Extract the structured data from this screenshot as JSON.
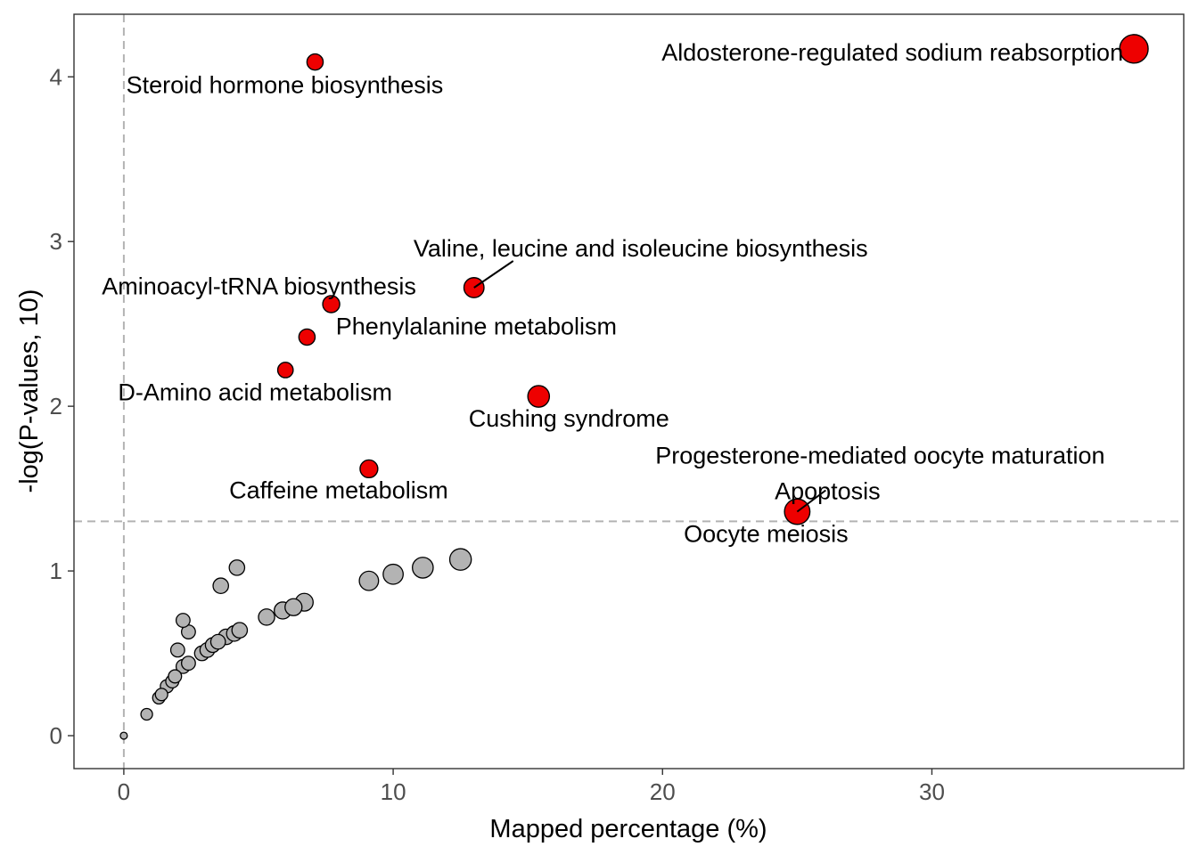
{
  "chart_data": {
    "type": "scatter",
    "title": "",
    "xlabel": "Mapped percentage (%)",
    "ylabel": "-log(P-values, 10)",
    "xlim": [
      -1.85,
      39.35
    ],
    "ylim": [
      -0.2,
      4.38
    ],
    "x_ticks": [
      0,
      10,
      20,
      30
    ],
    "y_ticks": [
      0,
      1,
      2,
      3,
      4
    ],
    "x_tick_labels": [
      "0",
      "10",
      "20",
      "30"
    ],
    "y_tick_labels": [
      "0",
      "1",
      "2",
      "3",
      "4"
    ],
    "reference_lines": {
      "vline_x": 0,
      "hline_y": 1.301
    },
    "grid": false,
    "legend": "none",
    "colors": {
      "significant": "#ee0000",
      "nonsignificant": "#b3b3b3",
      "outline": "#000000",
      "reference": "#b3b3b3"
    },
    "significant_points": [
      {
        "name": "Aldosterone-regulated sodium reabsorption",
        "x": 37.5,
        "y": 4.17,
        "size": 3.2
      },
      {
        "name": "Steroid hormone biosynthesis",
        "x": 7.1,
        "y": 4.09,
        "size": 1.6
      },
      {
        "name": "Valine, leucine and isoleucine biosynthesis",
        "x": 13.0,
        "y": 2.72,
        "size": 2.1
      },
      {
        "name": "Aminoacyl-tRNA biosynthesis",
        "x": 7.7,
        "y": 2.62,
        "size": 1.7
      },
      {
        "name": "Phenylalanine metabolism",
        "x": 6.8,
        "y": 2.42,
        "size": 1.6
      },
      {
        "name": "D-Amino acid metabolism",
        "x": 6.0,
        "y": 2.22,
        "size": 1.5
      },
      {
        "name": "Cushing syndrome",
        "x": 15.4,
        "y": 2.06,
        "size": 2.3
      },
      {
        "name": "Caffeine metabolism",
        "x": 9.1,
        "y": 1.62,
        "size": 1.8
      },
      {
        "name": "Progesterone-mediated oocyte maturation",
        "x": 25.0,
        "y": 1.36,
        "size": 2.8
      },
      {
        "name": "Apoptosis",
        "x": 25.0,
        "y": 1.36,
        "size": 2.8
      },
      {
        "name": "Oocyte meiosis",
        "x": 25.0,
        "y": 1.36,
        "size": 2.8
      }
    ],
    "nonsignificant_points": [
      {
        "x": 0.0,
        "y": 0.0,
        "size": 0.4
      },
      {
        "x": 0.85,
        "y": 0.13,
        "size": 1.0
      },
      {
        "x": 1.3,
        "y": 0.23,
        "size": 1.1
      },
      {
        "x": 1.4,
        "y": 0.25,
        "size": 1.1
      },
      {
        "x": 1.6,
        "y": 0.3,
        "size": 1.2
      },
      {
        "x": 1.8,
        "y": 0.33,
        "size": 1.2
      },
      {
        "x": 1.9,
        "y": 0.36,
        "size": 1.2
      },
      {
        "x": 2.2,
        "y": 0.42,
        "size": 1.3
      },
      {
        "x": 2.4,
        "y": 0.44,
        "size": 1.3
      },
      {
        "x": 2.0,
        "y": 0.52,
        "size": 1.3
      },
      {
        "x": 2.4,
        "y": 0.63,
        "size": 1.3
      },
      {
        "x": 2.2,
        "y": 0.7,
        "size": 1.3
      },
      {
        "x": 2.9,
        "y": 0.5,
        "size": 1.4
      },
      {
        "x": 3.1,
        "y": 0.52,
        "size": 1.4
      },
      {
        "x": 3.3,
        "y": 0.55,
        "size": 1.4
      },
      {
        "x": 3.5,
        "y": 0.57,
        "size": 1.4
      },
      {
        "x": 3.8,
        "y": 0.6,
        "size": 1.5
      },
      {
        "x": 4.1,
        "y": 0.62,
        "size": 1.5
      },
      {
        "x": 4.3,
        "y": 0.64,
        "size": 1.5
      },
      {
        "x": 3.6,
        "y": 0.91,
        "size": 1.5
      },
      {
        "x": 4.2,
        "y": 1.02,
        "size": 1.5
      },
      {
        "x": 5.3,
        "y": 0.72,
        "size": 1.6
      },
      {
        "x": 5.9,
        "y": 0.76,
        "size": 1.7
      },
      {
        "x": 6.3,
        "y": 0.78,
        "size": 1.7
      },
      {
        "x": 6.7,
        "y": 0.81,
        "size": 1.8
      },
      {
        "x": 9.1,
        "y": 0.94,
        "size": 2.0
      },
      {
        "x": 10.0,
        "y": 0.98,
        "size": 2.1
      },
      {
        "x": 11.1,
        "y": 1.02,
        "size": 2.2
      },
      {
        "x": 12.5,
        "y": 1.07,
        "size": 2.3
      }
    ]
  }
}
